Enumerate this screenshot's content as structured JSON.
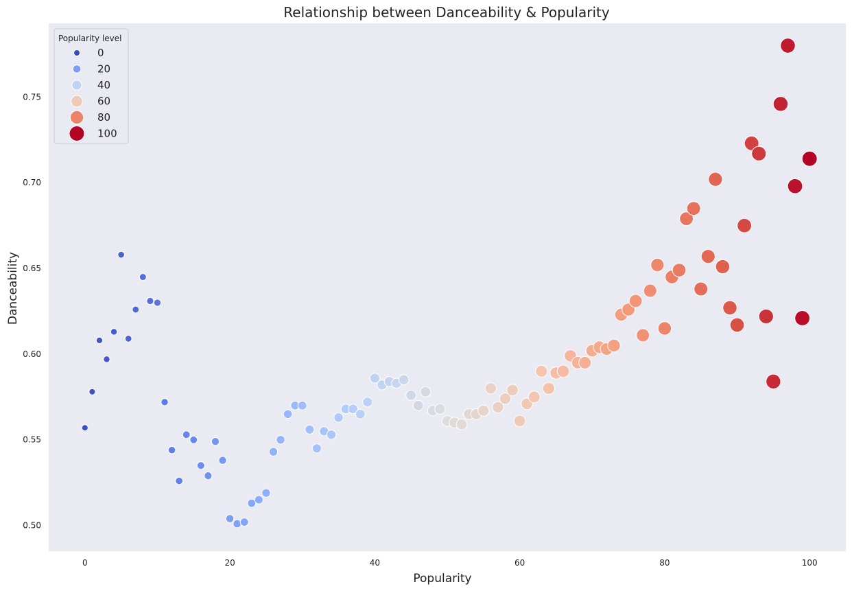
{
  "chart_data": {
    "type": "scatter",
    "title": "Relationship between Danceability & Popularity",
    "xlabel": "Popularity",
    "ylabel": "Danceability",
    "xlim": [
      -5,
      105
    ],
    "ylim": [
      0.485,
      0.793
    ],
    "xticks": [
      0,
      20,
      40,
      60,
      80,
      100
    ],
    "yticks": [
      0.5,
      0.55,
      0.6,
      0.65,
      0.7,
      0.75
    ],
    "grid": false,
    "background": "#eaeaf2",
    "colormap": "coolwarm",
    "legend": {
      "title": "Popularity level",
      "placement": "upper-left",
      "entries": [
        "0",
        "20",
        "40",
        "60",
        "80",
        "100"
      ]
    },
    "points": [
      [
        0,
        0.557
      ],
      [
        1,
        0.578
      ],
      [
        2,
        0.608
      ],
      [
        3,
        0.597
      ],
      [
        4,
        0.613
      ],
      [
        5,
        0.658
      ],
      [
        6,
        0.609
      ],
      [
        7,
        0.626
      ],
      [
        8,
        0.645
      ],
      [
        9,
        0.631
      ],
      [
        10,
        0.63
      ],
      [
        11,
        0.572
      ],
      [
        12,
        0.544
      ],
      [
        13,
        0.526
      ],
      [
        14,
        0.553
      ],
      [
        15,
        0.55
      ],
      [
        16,
        0.535
      ],
      [
        17,
        0.529
      ],
      [
        18,
        0.549
      ],
      [
        19,
        0.538
      ],
      [
        20,
        0.504
      ],
      [
        21,
        0.501
      ],
      [
        22,
        0.502
      ],
      [
        23,
        0.513
      ],
      [
        24,
        0.515
      ],
      [
        25,
        0.519
      ],
      [
        26,
        0.543
      ],
      [
        27,
        0.55
      ],
      [
        28,
        0.565
      ],
      [
        29,
        0.57
      ],
      [
        30,
        0.57
      ],
      [
        31,
        0.556
      ],
      [
        32,
        0.545
      ],
      [
        33,
        0.555
      ],
      [
        34,
        0.553
      ],
      [
        35,
        0.563
      ],
      [
        36,
        0.568
      ],
      [
        37,
        0.568
      ],
      [
        38,
        0.565
      ],
      [
        39,
        0.572
      ],
      [
        40,
        0.586
      ],
      [
        41,
        0.582
      ],
      [
        42,
        0.584
      ],
      [
        43,
        0.583
      ],
      [
        44,
        0.585
      ],
      [
        45,
        0.576
      ],
      [
        46,
        0.57
      ],
      [
        47,
        0.578
      ],
      [
        48,
        0.567
      ],
      [
        49,
        0.568
      ],
      [
        50,
        0.561
      ],
      [
        51,
        0.56
      ],
      [
        52,
        0.559
      ],
      [
        53,
        0.565
      ],
      [
        54,
        0.565
      ],
      [
        55,
        0.567
      ],
      [
        56,
        0.58
      ],
      [
        57,
        0.569
      ],
      [
        58,
        0.574
      ],
      [
        59,
        0.579
      ],
      [
        60,
        0.561
      ],
      [
        61,
        0.571
      ],
      [
        62,
        0.575
      ],
      [
        63,
        0.59
      ],
      [
        64,
        0.58
      ],
      [
        65,
        0.589
      ],
      [
        66,
        0.59
      ],
      [
        67,
        0.599
      ],
      [
        68,
        0.595
      ],
      [
        69,
        0.595
      ],
      [
        70,
        0.602
      ],
      [
        71,
        0.604
      ],
      [
        72,
        0.603
      ],
      [
        73,
        0.605
      ],
      [
        74,
        0.623
      ],
      [
        75,
        0.626
      ],
      [
        76,
        0.631
      ],
      [
        77,
        0.611
      ],
      [
        78,
        0.637
      ],
      [
        79,
        0.652
      ],
      [
        80,
        0.615
      ],
      [
        81,
        0.645
      ],
      [
        82,
        0.649
      ],
      [
        83,
        0.679
      ],
      [
        84,
        0.685
      ],
      [
        85,
        0.638
      ],
      [
        86,
        0.657
      ],
      [
        87,
        0.702
      ],
      [
        88,
        0.651
      ],
      [
        89,
        0.627
      ],
      [
        90,
        0.617
      ],
      [
        91,
        0.675
      ],
      [
        92,
        0.723
      ],
      [
        93,
        0.717
      ],
      [
        94,
        0.622
      ],
      [
        95,
        0.584
      ],
      [
        96,
        0.746
      ],
      [
        97,
        0.78
      ],
      [
        98,
        0.698
      ],
      [
        99,
        0.621
      ],
      [
        100,
        0.714
      ]
    ]
  }
}
